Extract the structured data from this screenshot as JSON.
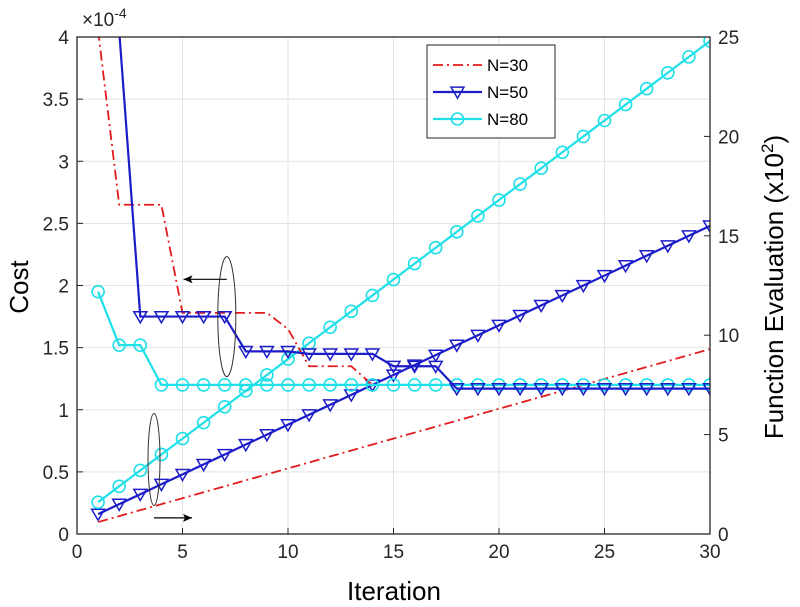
{
  "chart_data": {
    "type": "line",
    "xlabel": "Iteration",
    "ylabel": "Cost",
    "ylabel_right": "Function Evaluation (x10",
    "ylabel_right_exp": "2",
    "ylabel_right_close": ")",
    "multiplier_base": "×10",
    "multiplier_exp": "-4",
    "xlim": [
      0,
      30
    ],
    "ylim": [
      0,
      4
    ],
    "y2lim": [
      0,
      25
    ],
    "xticks": [
      0,
      5,
      10,
      15,
      20,
      25,
      30
    ],
    "xtick_labels": [
      "0",
      "5",
      "10",
      "15",
      "20",
      "25",
      "30"
    ],
    "yticks": [
      0,
      0.5,
      1,
      1.5,
      2,
      2.5,
      3,
      3.5,
      4
    ],
    "ytick_labels": [
      "0",
      "0.5",
      "1",
      "1.5",
      "2",
      "2.5",
      "3",
      "3.5",
      "4"
    ],
    "y2ticks": [
      0,
      5,
      10,
      15,
      20,
      25
    ],
    "y2tick_labels": [
      "0",
      "5",
      "10",
      "15",
      "20",
      "25"
    ],
    "grid": true,
    "legend_position": "top-right",
    "series": [
      {
        "name": "N=30",
        "color": "#e31a1c",
        "style": "dashdot",
        "marker": "none",
        "axis": "left",
        "x": [
          1,
          2,
          3,
          4,
          5,
          6,
          7,
          8,
          9,
          10,
          11,
          12,
          13,
          14,
          15,
          16,
          17,
          18,
          19,
          20,
          21,
          22,
          23,
          24,
          25,
          26,
          27,
          28,
          29,
          30
        ],
        "y": [
          4.05,
          2.65,
          2.65,
          2.65,
          1.78,
          1.78,
          1.78,
          1.78,
          1.78,
          1.65,
          1.35,
          1.35,
          1.35,
          1.2,
          1.2,
          1.2,
          1.2,
          1.2,
          1.2,
          1.2,
          1.2,
          1.2,
          1.2,
          1.2,
          1.2,
          1.2,
          1.2,
          1.2,
          1.2,
          1.2
        ]
      },
      {
        "name": "N=50",
        "color": "#1c1cc8",
        "style": "solid",
        "marker": "triangle-down",
        "axis": "left",
        "x": [
          1,
          2,
          3,
          4,
          5,
          6,
          7,
          8,
          9,
          10,
          11,
          12,
          13,
          14,
          15,
          16,
          17,
          18,
          19,
          20,
          21,
          22,
          23,
          24,
          25,
          26,
          27,
          28,
          29,
          30
        ],
        "y": [
          4.05,
          4.05,
          1.75,
          1.75,
          1.75,
          1.75,
          1.75,
          1.47,
          1.47,
          1.47,
          1.45,
          1.45,
          1.45,
          1.45,
          1.35,
          1.35,
          1.35,
          1.17,
          1.17,
          1.17,
          1.17,
          1.17,
          1.17,
          1.17,
          1.17,
          1.17,
          1.17,
          1.17,
          1.17,
          1.17
        ]
      },
      {
        "name": "N=80",
        "color": "#1ee0e8",
        "style": "solid",
        "marker": "circle",
        "axis": "left",
        "x": [
          1,
          2,
          3,
          4,
          5,
          6,
          7,
          8,
          9,
          10,
          11,
          12,
          13,
          14,
          15,
          16,
          17,
          18,
          19,
          20,
          21,
          22,
          23,
          24,
          25,
          26,
          27,
          28,
          29,
          30
        ],
        "y": [
          1.95,
          1.52,
          1.52,
          1.2,
          1.2,
          1.2,
          1.2,
          1.2,
          1.2,
          1.2,
          1.2,
          1.2,
          1.2,
          1.2,
          1.2,
          1.2,
          1.2,
          1.2,
          1.2,
          1.2,
          1.2,
          1.2,
          1.2,
          1.2,
          1.2,
          1.2,
          1.2,
          1.2,
          1.2,
          1.2
        ]
      },
      {
        "name": "N=30",
        "color": "#e31a1c",
        "style": "dashdot",
        "marker": "none",
        "axis": "right",
        "x": [
          1,
          30
        ],
        "y": [
          0.6,
          9.3
        ]
      },
      {
        "name": "N=50",
        "color": "#1c1cc8",
        "style": "solid",
        "marker": "triangle-down",
        "axis": "right",
        "x": [
          1,
          2,
          3,
          4,
          5,
          6,
          7,
          8,
          9,
          10,
          11,
          12,
          13,
          14,
          15,
          16,
          17,
          18,
          19,
          20,
          21,
          22,
          23,
          24,
          25,
          26,
          27,
          28,
          29,
          30
        ],
        "y": [
          1.0,
          1.5,
          2.0,
          2.5,
          3.0,
          3.5,
          4.0,
          4.5,
          5.0,
          5.5,
          6.0,
          6.5,
          7.0,
          7.5,
          8.0,
          8.5,
          9.0,
          9.5,
          10.0,
          10.5,
          11.0,
          11.5,
          12.0,
          12.5,
          13.0,
          13.5,
          14.0,
          14.5,
          15.0,
          15.5
        ]
      },
      {
        "name": "N=80",
        "color": "#1ee0e8",
        "style": "solid",
        "marker": "circle",
        "axis": "right",
        "x": [
          1,
          2,
          3,
          4,
          5,
          6,
          7,
          8,
          9,
          10,
          11,
          12,
          13,
          14,
          15,
          16,
          17,
          18,
          19,
          20,
          21,
          22,
          23,
          24,
          25,
          26,
          27,
          28,
          29,
          30
        ],
        "y": [
          1.6,
          2.4,
          3.2,
          4.0,
          4.8,
          5.6,
          6.4,
          7.2,
          8.0,
          8.8,
          9.6,
          10.4,
          11.2,
          12.0,
          12.8,
          13.6,
          14.4,
          15.2,
          16.0,
          16.8,
          17.6,
          18.4,
          19.2,
          20.0,
          20.8,
          21.6,
          22.4,
          23.2,
          24.0,
          24.8
        ]
      }
    ]
  }
}
